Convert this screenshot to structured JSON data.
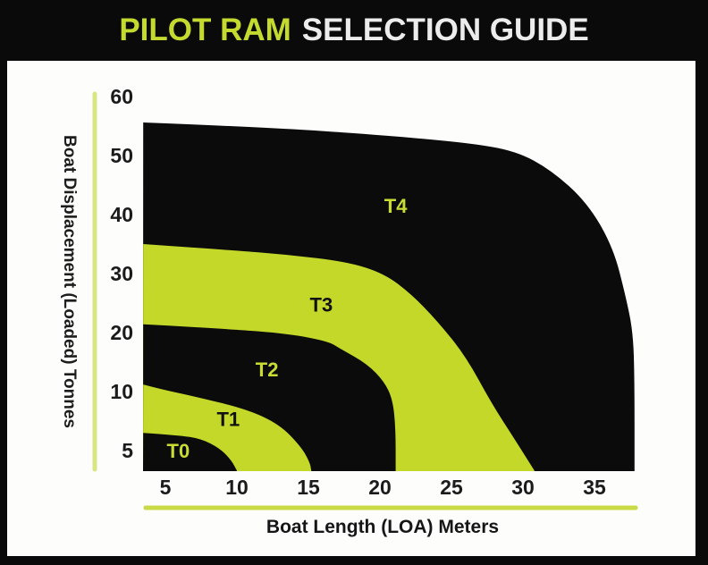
{
  "title": {
    "highlight": "PILOT RAM",
    "rest": "SELECTION GUIDE"
  },
  "colors": {
    "band_yellow": "#c3d829",
    "band_black": "#0b0b0b",
    "y_axis_line": "#d9e682",
    "x_axis_line": "#c9da44",
    "tick_text": "#1b1b1b",
    "label_on_black": "#c8dc33",
    "label_on_yellow": "#111111"
  },
  "chart_data": {
    "type": "area",
    "title": "PILOT RAM SELECTION GUIDE",
    "xlabel": "Boat Length (LOA) Meters",
    "ylabel": "Boat Displacement (Loaded) Tonnes",
    "x_ticks": [
      5,
      10,
      15,
      20,
      25,
      30,
      35
    ],
    "y_ticks": [
      5,
      10,
      20,
      30,
      40,
      50,
      60
    ],
    "y_scale_note": "y tick labels are evenly spaced despite non-uniform values (5,10 then steps of 10)",
    "xlim": [
      3.45,
      39.5
    ],
    "plot_bottom_value": 3.3,
    "grid": false,
    "bands": [
      {
        "name": "T0",
        "label": "T0",
        "fill": "black",
        "label_color": "on_black",
        "label_at": [
          5.9,
          5.0
        ],
        "upper_boundary": [
          [
            3.45,
            6.5
          ],
          [
            5.9,
            6.3
          ],
          [
            7.5,
            6.0
          ],
          [
            8.8,
            5.2
          ],
          [
            9.6,
            4.2
          ],
          [
            10.0,
            3.3
          ]
        ]
      },
      {
        "name": "T1",
        "label": "T1",
        "fill": "yellow",
        "label_color": "on_yellow",
        "label_at": [
          9.4,
          7.7
        ],
        "upper_boundary": [
          [
            3.45,
            11.2
          ],
          [
            4.7,
            10.4
          ],
          [
            7.0,
            9.6
          ],
          [
            10.7,
            8.5
          ],
          [
            13.0,
            7.2
          ],
          [
            14.5,
            5.3
          ],
          [
            15.1,
            4.0
          ],
          [
            15.2,
            3.3
          ]
        ]
      },
      {
        "name": "T2",
        "label": "T2",
        "fill": "black",
        "label_color": "on_black",
        "label_at": [
          12.1,
          13.8
        ],
        "upper_boundary": [
          [
            3.45,
            21.4
          ],
          [
            9.4,
            20.6
          ],
          [
            13.6,
            19.8
          ],
          [
            16.4,
            18.5
          ],
          [
            17.2,
            17.3
          ],
          [
            19.1,
            14.7
          ],
          [
            20.3,
            11.7
          ],
          [
            20.9,
            9.3
          ],
          [
            21.1,
            6.8
          ],
          [
            21.1,
            3.3
          ]
        ]
      },
      {
        "name": "T3",
        "label": "T3",
        "fill": "yellow",
        "label_color": "on_yellow",
        "label_at": [
          15.9,
          24.8
        ],
        "upper_boundary": [
          [
            3.45,
            35.0
          ],
          [
            9.4,
            34.0
          ],
          [
            13.6,
            33.2
          ],
          [
            17.7,
            32.0
          ],
          [
            20.3,
            30.0
          ],
          [
            22.2,
            26.5
          ],
          [
            24.0,
            22.0
          ],
          [
            26.0,
            16.0
          ],
          [
            27.8,
            9.0
          ],
          [
            29.4,
            6.0
          ],
          [
            30.8,
            3.3
          ]
        ]
      },
      {
        "name": "T4",
        "label": "T4",
        "fill": "black",
        "label_color": "on_black",
        "label_at": [
          21.1,
          41.5
        ],
        "upper_boundary": [
          [
            3.45,
            55.6
          ],
          [
            12.0,
            54.8
          ],
          [
            20.0,
            53.5
          ],
          [
            26.0,
            52.2
          ],
          [
            29.5,
            50.8
          ],
          [
            32.0,
            47.5
          ],
          [
            34.5,
            42.0
          ],
          [
            36.3,
            34.5
          ],
          [
            37.2,
            26.0
          ],
          [
            37.7,
            20.0
          ],
          [
            37.8,
            12.0
          ],
          [
            37.8,
            3.3
          ]
        ]
      }
    ]
  }
}
